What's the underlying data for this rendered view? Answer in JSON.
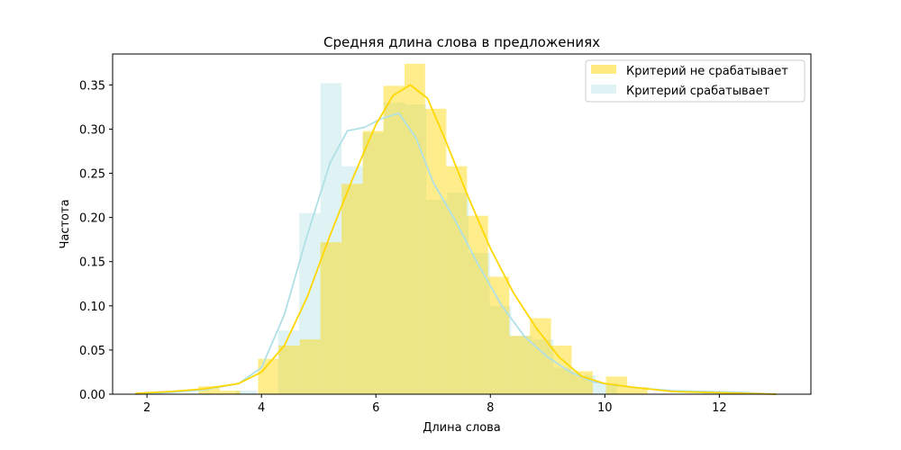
{
  "chart_data": {
    "type": "histogram",
    "title": "Средняя длина слова в предложениях",
    "xlabel": "Длина слова",
    "ylabel": "Частота",
    "xlim": [
      1.4,
      13.6
    ],
    "ylim": [
      0,
      0.385
    ],
    "xticks": [
      "2",
      "4",
      "6",
      "8",
      "10",
      "12"
    ],
    "yticks": [
      "0.00",
      "0.05",
      "0.10",
      "0.15",
      "0.20",
      "0.25",
      "0.30",
      "0.35"
    ],
    "legend_position": "top-right",
    "series": [
      {
        "name": "Критерий не срабатывает",
        "color": "#FFD700",
        "bars": [
          {
            "x0": 2.9,
            "x1": 3.27,
            "y": 0.009
          },
          {
            "x0": 3.27,
            "x1": 3.63,
            "y": 0.004
          },
          {
            "x0": 3.94,
            "x1": 4.3,
            "y": 0.04
          },
          {
            "x0": 4.3,
            "x1": 4.67,
            "y": 0.055
          },
          {
            "x0": 4.67,
            "x1": 5.03,
            "y": 0.062
          },
          {
            "x0": 5.03,
            "x1": 5.4,
            "y": 0.172
          },
          {
            "x0": 5.4,
            "x1": 5.77,
            "y": 0.238
          },
          {
            "x0": 5.77,
            "x1": 6.13,
            "y": 0.298
          },
          {
            "x0": 6.13,
            "x1": 6.5,
            "y": 0.349
          },
          {
            "x0": 6.5,
            "x1": 6.86,
            "y": 0.374
          },
          {
            "x0": 6.86,
            "x1": 7.23,
            "y": 0.323
          },
          {
            "x0": 7.23,
            "x1": 7.59,
            "y": 0.258
          },
          {
            "x0": 7.59,
            "x1": 7.96,
            "y": 0.202
          },
          {
            "x0": 7.96,
            "x1": 8.33,
            "y": 0.133
          },
          {
            "x0": 8.33,
            "x1": 8.69,
            "y": 0.066
          },
          {
            "x0": 8.69,
            "x1": 9.06,
            "y": 0.086
          },
          {
            "x0": 9.06,
            "x1": 9.42,
            "y": 0.055
          },
          {
            "x0": 9.42,
            "x1": 9.79,
            "y": 0.026
          },
          {
            "x0": 10.02,
            "x1": 10.39,
            "y": 0.02
          },
          {
            "x0": 10.39,
            "x1": 10.75,
            "y": 0.008
          }
        ],
        "kde": {
          "x": [
            1.8,
            2.4,
            3.0,
            3.6,
            4.0,
            4.4,
            4.8,
            5.2,
            5.6,
            6.0,
            6.3,
            6.6,
            6.9,
            7.2,
            7.6,
            8.0,
            8.4,
            8.8,
            9.2,
            9.6,
            10.0,
            10.6,
            11.2,
            11.8,
            12.4,
            13.0
          ],
          "y": [
            0.001,
            0.003,
            0.006,
            0.012,
            0.025,
            0.055,
            0.11,
            0.18,
            0.245,
            0.305,
            0.338,
            0.35,
            0.335,
            0.29,
            0.225,
            0.165,
            0.115,
            0.075,
            0.042,
            0.02,
            0.012,
            0.007,
            0.003,
            0.002,
            0.001,
            0.0
          ]
        }
      },
      {
        "name": "Критерий срабатывает",
        "color": "#B0E0E6",
        "bars": [
          {
            "x0": 3.55,
            "x1": 3.92,
            "y": 0.004
          },
          {
            "x0": 4.29,
            "x1": 4.66,
            "y": 0.072
          },
          {
            "x0": 4.66,
            "x1": 5.03,
            "y": 0.205
          },
          {
            "x0": 5.03,
            "x1": 5.4,
            "y": 0.352
          },
          {
            "x0": 5.4,
            "x1": 5.77,
            "y": 0.258
          },
          {
            "x0": 5.77,
            "x1": 6.14,
            "y": 0.296
          },
          {
            "x0": 6.14,
            "x1": 6.51,
            "y": 0.33
          },
          {
            "x0": 6.51,
            "x1": 6.88,
            "y": 0.328
          },
          {
            "x0": 6.88,
            "x1": 7.25,
            "y": 0.22
          },
          {
            "x0": 7.25,
            "x1": 7.62,
            "y": 0.228
          },
          {
            "x0": 7.62,
            "x1": 7.99,
            "y": 0.16
          },
          {
            "x0": 7.99,
            "x1": 8.36,
            "y": 0.1
          },
          {
            "x0": 8.36,
            "x1": 8.73,
            "y": 0.066
          },
          {
            "x0": 8.73,
            "x1": 9.1,
            "y": 0.062
          },
          {
            "x0": 9.1,
            "x1": 9.47,
            "y": 0.03
          },
          {
            "x0": 9.47,
            "x1": 9.84,
            "y": 0.021
          },
          {
            "x0": 9.84,
            "x1": 10.21,
            "y": 0.012
          },
          {
            "x0": 11.7,
            "x1": 12.07,
            "y": 0.003
          }
        ],
        "kde": {
          "x": [
            1.8,
            2.4,
            3.0,
            3.6,
            4.0,
            4.4,
            4.8,
            5.2,
            5.5,
            5.8,
            6.1,
            6.4,
            6.7,
            7.0,
            7.4,
            7.8,
            8.2,
            8.6,
            9.0,
            9.4,
            9.8,
            10.2,
            10.6,
            11.2,
            11.8,
            12.4,
            13.0
          ],
          "y": [
            0.0,
            0.002,
            0.005,
            0.012,
            0.03,
            0.09,
            0.18,
            0.262,
            0.298,
            0.302,
            0.312,
            0.318,
            0.29,
            0.24,
            0.195,
            0.145,
            0.1,
            0.065,
            0.042,
            0.025,
            0.014,
            0.01,
            0.007,
            0.004,
            0.003,
            0.002,
            0.0
          ]
        }
      }
    ]
  }
}
